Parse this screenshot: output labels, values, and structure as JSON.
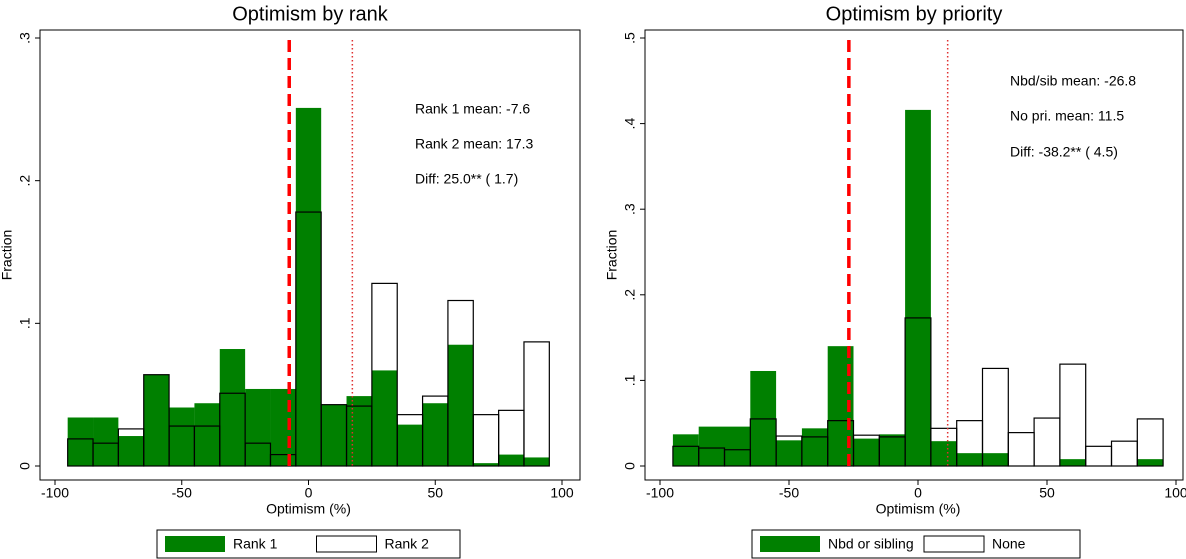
{
  "chart_data": [
    {
      "type": "histogram",
      "title": "Optimism by rank",
      "xlabel": "Optimism (%)",
      "ylabel": "Fraction",
      "bins": [
        -95,
        -85,
        -75,
        -65,
        -55,
        -45,
        -35,
        -25,
        -15,
        -5,
        5,
        15,
        25,
        35,
        45,
        55,
        65,
        75,
        85,
        95
      ],
      "series": [
        {
          "name": "Rank 1",
          "color": "#008000",
          "fill": true,
          "values": [
            0.034,
            0.034,
            0.021,
            0.064,
            0.041,
            0.044,
            0.082,
            0.054,
            0.054,
            0.251,
            0.043,
            0.049,
            0.067,
            0.029,
            0.044,
            0.085,
            0.002,
            0.008,
            0.006
          ]
        },
        {
          "name": "Rank 2",
          "color": "#000000",
          "fill": false,
          "values": [
            0.019,
            0.016,
            0.026,
            0.064,
            0.028,
            0.028,
            0.051,
            0.016,
            0.008,
            0.178,
            0.043,
            0.042,
            0.128,
            0.036,
            0.049,
            0.116,
            0.036,
            0.039,
            0.087
          ]
        }
      ],
      "vlines": [
        {
          "value": -7.6,
          "style": "dashed"
        },
        {
          "value": 17.3,
          "style": "dotted"
        }
      ],
      "annotations": [
        "Rank 1 mean: -7.6",
        "Rank 2 mean: 17.3",
        "Diff: 25.0** ( 1.7)"
      ],
      "xlim": [
        -100,
        100
      ],
      "xticks": [
        -100,
        -50,
        0,
        50,
        100
      ],
      "ylim": [
        0,
        0.3
      ],
      "yticks": [
        0,
        {
          "value": 0.1,
          "label": ".1"
        },
        {
          "value": 0.2,
          "label": ".2"
        },
        {
          "value": 0.3,
          "label": ".3"
        }
      ]
    },
    {
      "type": "histogram",
      "title": "Optimism by priority",
      "xlabel": "Optimism (%)",
      "ylabel": "Fraction",
      "bins": [
        -95,
        -85,
        -75,
        -65,
        -55,
        -45,
        -35,
        -25,
        -15,
        -5,
        5,
        15,
        25,
        35,
        45,
        55,
        65,
        75,
        85,
        95
      ],
      "series": [
        {
          "name": "Nbd or sibling",
          "color": "#008000",
          "fill": true,
          "values": [
            0.037,
            0.046,
            0.046,
            0.111,
            0.03,
            0.044,
            0.14,
            0.032,
            0.037,
            0.416,
            0.029,
            0.015,
            0.015,
            0,
            0,
            0.008,
            0,
            0,
            0.008
          ]
        },
        {
          "name": "None",
          "color": "#000000",
          "fill": false,
          "values": [
            0.023,
            0.021,
            0.019,
            0.055,
            0.035,
            0.034,
            0.053,
            0.036,
            0.034,
            0.173,
            0.044,
            0.053,
            0.114,
            0.039,
            0.056,
            0.119,
            0.023,
            0.029,
            0.055
          ]
        }
      ],
      "vlines": [
        {
          "value": -26.8,
          "style": "dashed"
        },
        {
          "value": 11.5,
          "style": "dotted"
        }
      ],
      "annotations": [
        "Nbd/sib mean: -26.8",
        "No pri. mean: 11.5",
        "Diff: -38.2** ( 4.5)"
      ],
      "xlim": [
        -100,
        100
      ],
      "xticks": [
        -100,
        -50,
        0,
        50,
        100
      ],
      "ylim": [
        0,
        0.5
      ],
      "yticks": [
        0,
        {
          "value": 0.1,
          "label": ".1"
        },
        {
          "value": 0.2,
          "label": ".2"
        },
        {
          "value": 0.3,
          "label": ".3"
        },
        {
          "value": 0.4,
          "label": ".4"
        },
        {
          "value": 0.5,
          "label": ".5"
        }
      ]
    }
  ]
}
